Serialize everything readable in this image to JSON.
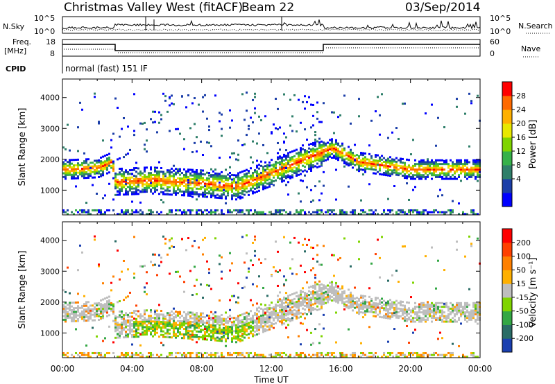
{
  "header": {
    "title": "Christmas Valley West (fitACF)",
    "beam": "Beam 22",
    "date": "03/Sep/2014"
  },
  "strip": {
    "nsky": {
      "label": "N.Sky",
      "ticks": [
        "10^5",
        "10^0"
      ],
      "right_ticks": [
        "10^5",
        "10^0"
      ],
      "legend": "N.Search"
    },
    "freq": {
      "label_top": "Freq.",
      "label_unit": "[MHz]",
      "ticks": [
        "18",
        "8"
      ],
      "right_ticks": [
        "60",
        "0"
      ],
      "legend": "Nave"
    },
    "cpid": {
      "label": "CPID",
      "text": "normal (fast) 151 IF"
    }
  },
  "time_axis": {
    "ticks": [
      "00:00",
      "04:00",
      "08:00",
      "12:00",
      "16:00",
      "20:00",
      "00:00"
    ],
    "label": "Time UT"
  },
  "chart_data": [
    {
      "type": "heatmap",
      "panel": "power",
      "ylabel": "Slant Range [km]",
      "yticks": [
        "1000",
        "2000",
        "3000",
        "4000"
      ],
      "ylim": [
        200,
        4600
      ],
      "xlim": [
        "00:00",
        "24:00"
      ],
      "colorbar": {
        "label": "Power [dB]",
        "ticks": [
          "28",
          "24",
          "20",
          "16",
          "12",
          "8",
          "4"
        ],
        "colors": [
          "#0000ff",
          "#1b3ea8",
          "#2f7f6a",
          "#36b14a",
          "#7fd400",
          "#e8e800",
          "#ffb000",
          "#ff6a00",
          "#ff0000"
        ]
      },
      "main_band_km": [
        {
          "t": "00:00",
          "km": 1700
        },
        {
          "t": "02:00",
          "km": 1750
        },
        {
          "t": "02:48",
          "km": 1950
        },
        {
          "t": "03:00",
          "km": 1300
        },
        {
          "t": "05:00",
          "km": 1350
        },
        {
          "t": "08:00",
          "km": 1250
        },
        {
          "t": "10:00",
          "km": 1150
        },
        {
          "t": "15:30",
          "km": 2400
        },
        {
          "t": "17:00",
          "km": 1950
        },
        {
          "t": "20:00",
          "km": 1700
        },
        {
          "t": "24:00",
          "km": 1700
        }
      ]
    },
    {
      "type": "heatmap",
      "panel": "velocity",
      "ylabel": "Slant Range [km]",
      "yticks": [
        "1000",
        "2000",
        "3000",
        "4000"
      ],
      "ylim": [
        200,
        4600
      ],
      "xlim": [
        "00:00",
        "24:00"
      ],
      "colorbar": {
        "label": "Velocity [m s⁻¹]",
        "ticks": [
          "200",
          "100",
          "50",
          "15",
          "-15",
          "-50",
          "-100",
          "-200"
        ],
        "colors": [
          "#1a3fb0",
          "#2a6c66",
          "#33a744",
          "#7fd400",
          "#bebebe",
          "#ffb000",
          "#ff8000",
          "#ff4000",
          "#ff0000"
        ]
      }
    }
  ]
}
